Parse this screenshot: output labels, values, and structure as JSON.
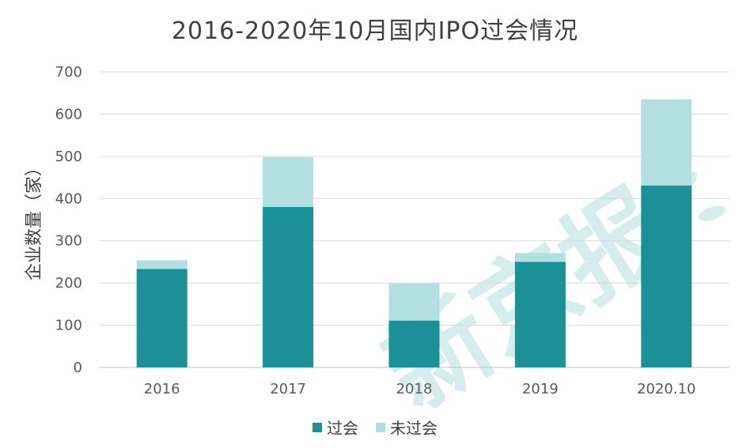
{
  "chart_data": {
    "type": "bar",
    "stacked": true,
    "title": "2016-2020年10月国内IPO过会情况",
    "ylabel": "企业数量（家）",
    "xlabel": "",
    "categories": [
      "2016",
      "2017",
      "2018",
      "2019",
      "2020.10"
    ],
    "series": [
      {
        "name": "过会",
        "values": [
          233,
          380,
          111,
          250,
          431
        ],
        "color": "#1b9096"
      },
      {
        "name": "未过会",
        "values": [
          21,
          118,
          88,
          21,
          204
        ],
        "color": "#b3dfe0"
      }
    ],
    "ylim": [
      0,
      700
    ],
    "yticks": [
      0,
      100,
      200,
      300,
      400,
      500,
      600,
      700
    ],
    "grid": true,
    "legend_position": "bottom"
  },
  "watermark": {
    "text": "新京报",
    "color": "#b3dfe0"
  }
}
